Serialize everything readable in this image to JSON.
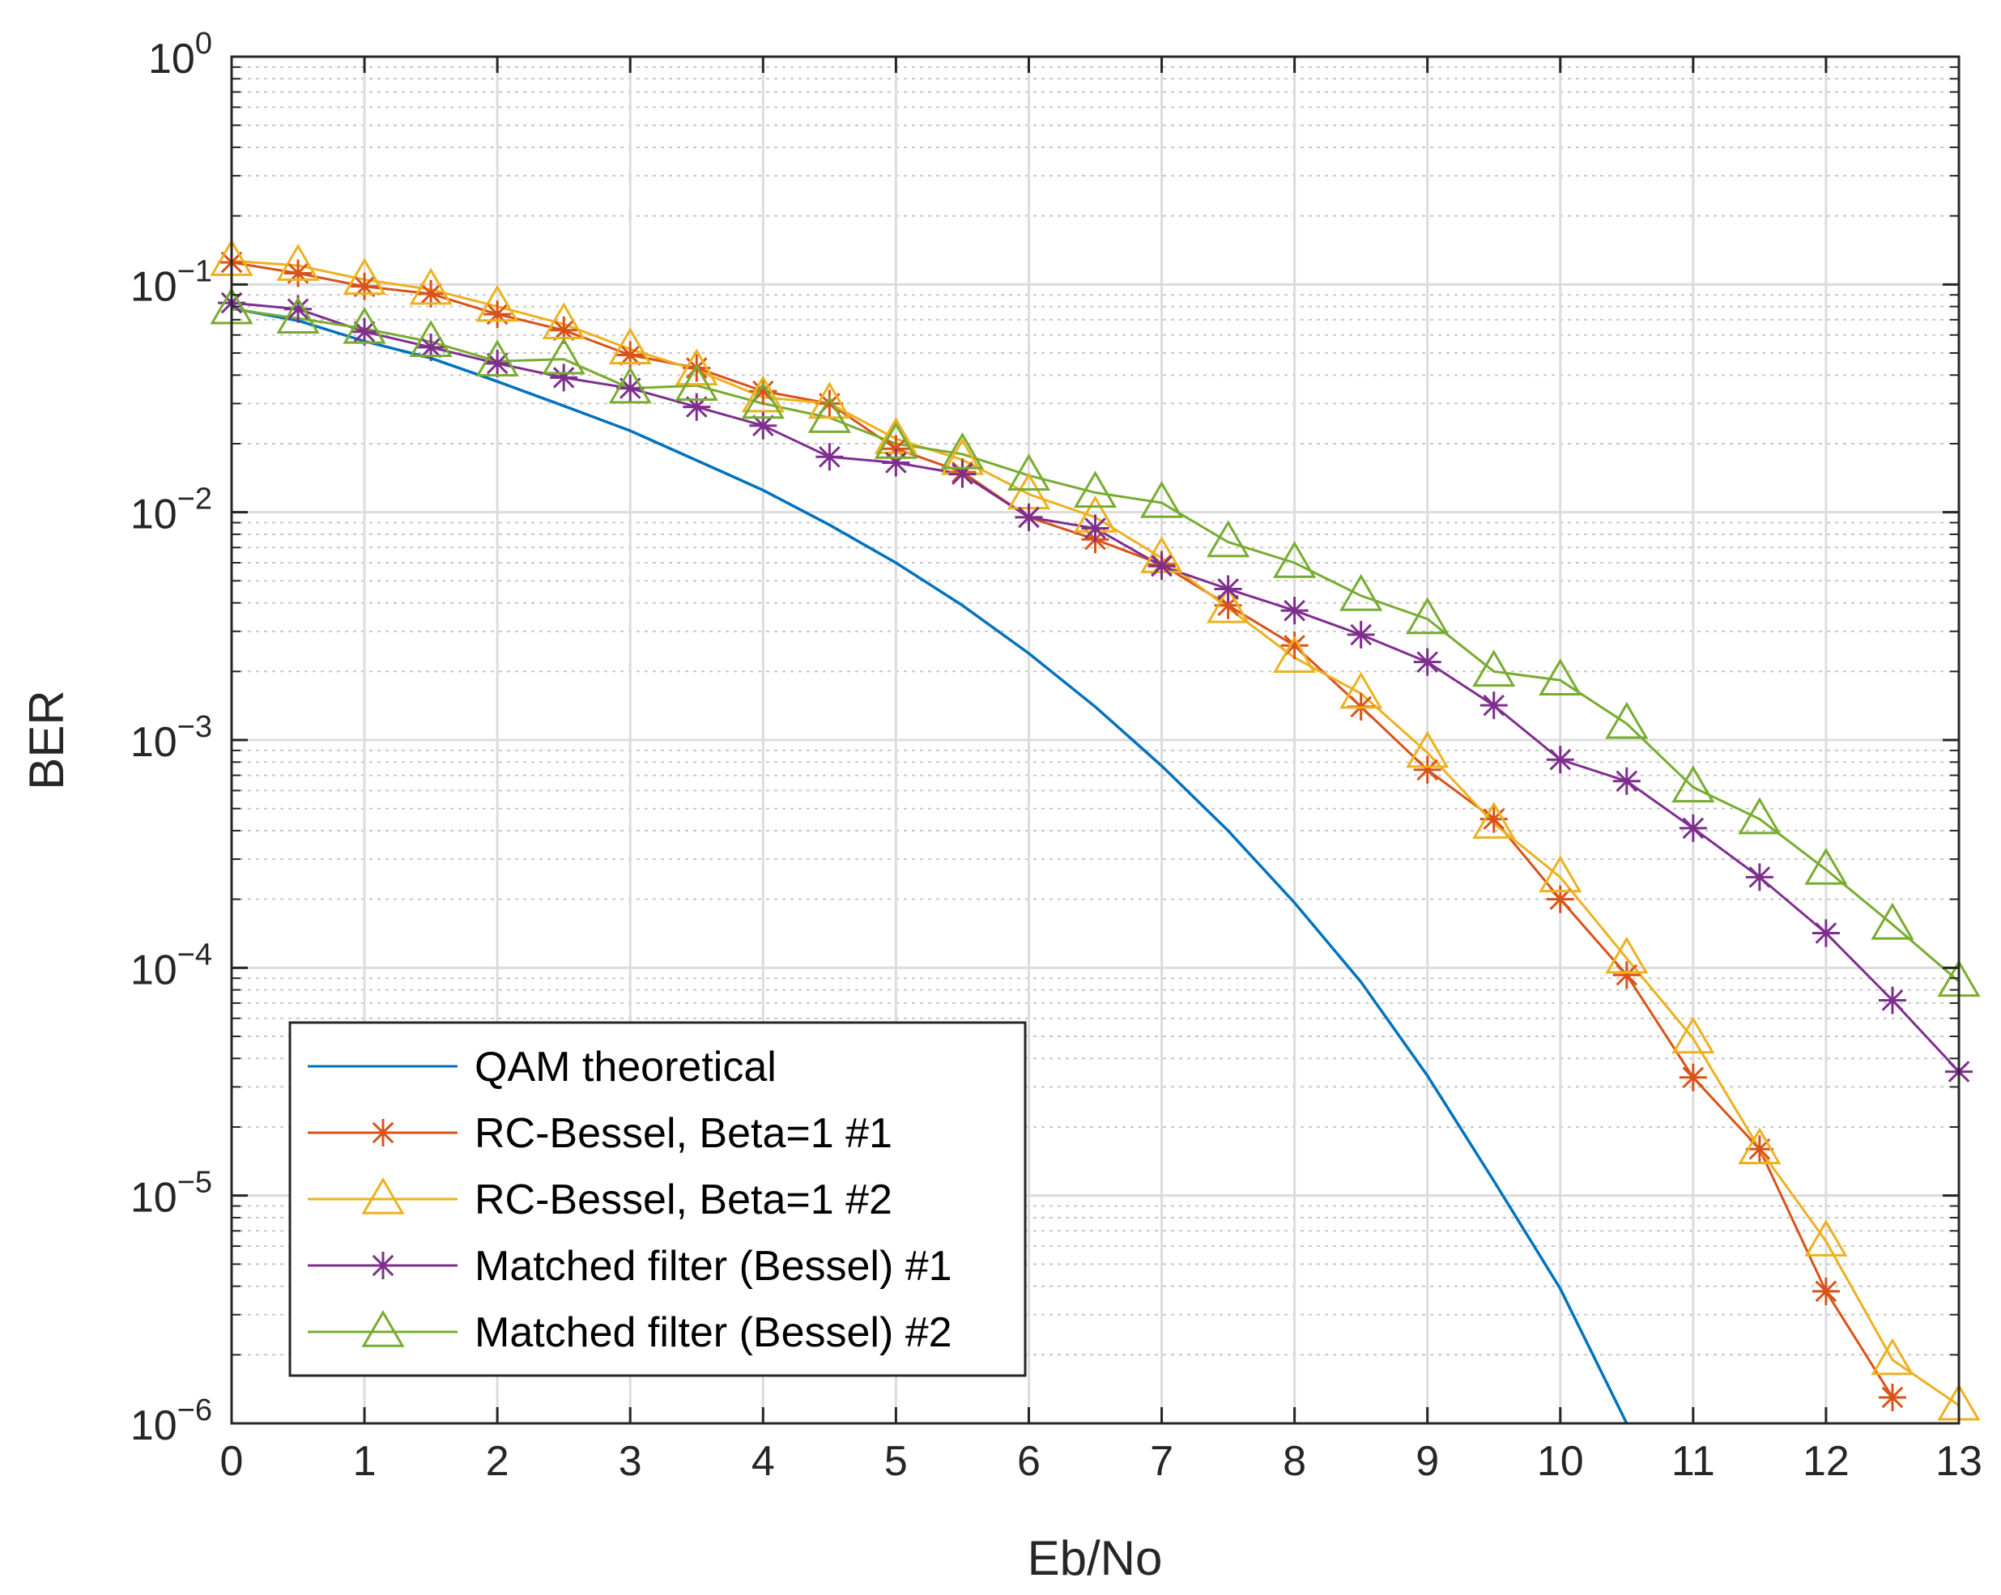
{
  "chart_data": {
    "type": "line",
    "title": "",
    "xlabel": "Eb/No",
    "ylabel": "BER",
    "yscale": "log",
    "xlim": [
      0,
      13
    ],
    "ylim": [
      1e-06,
      1
    ],
    "grid": true,
    "legend_position": "bottom-left",
    "x_ticks": [
      "0",
      "1",
      "2",
      "3",
      "4",
      "5",
      "6",
      "7",
      "8",
      "9",
      "10",
      "11",
      "12",
      "13"
    ],
    "y_ticks": [
      {
        "base": "10",
        "exp": "0"
      },
      {
        "base": "10",
        "exp": "−1"
      },
      {
        "base": "10",
        "exp": "−2"
      },
      {
        "base": "10",
        "exp": "−3"
      },
      {
        "base": "10",
        "exp": "−4"
      },
      {
        "base": "10",
        "exp": "−5"
      },
      {
        "base": "10",
        "exp": "−6"
      }
    ],
    "series": [
      {
        "name": "QAM theoretical",
        "color": "#0072BD",
        "marker": "none",
        "x": [
          0,
          0.5,
          1,
          1.5,
          2,
          2.5,
          3,
          3.5,
          4,
          4.5,
          5,
          5.5,
          6,
          6.5,
          7,
          7.5,
          8,
          8.5,
          9,
          9.5,
          10,
          10.5
        ],
        "values": [
          0.0786,
          0.0694,
          0.0563,
          0.0475,
          0.0375,
          0.0293,
          0.0228,
          0.0169,
          0.0125,
          0.0088,
          0.006,
          0.0039,
          0.0024,
          0.0014,
          0.00077,
          0.0004,
          0.000193,
          8.66e-05,
          3.36e-05,
          1.16e-05,
          3.9e-06,
          1e-06
        ]
      },
      {
        "name": "RC-Bessel, Beta=1 #1",
        "color": "#D95319",
        "marker": "asterisk",
        "x": [
          0,
          0.5,
          1,
          1.5,
          2,
          2.5,
          3,
          3.5,
          4,
          4.5,
          5,
          5.5,
          6,
          6.5,
          7,
          7.5,
          8,
          8.5,
          9,
          9.5,
          10,
          10.5,
          11,
          11.5,
          12,
          12.5
        ],
        "values": [
          0.125,
          0.112,
          0.098,
          0.091,
          0.074,
          0.063,
          0.049,
          0.043,
          0.034,
          0.03,
          0.019,
          0.015,
          0.0095,
          0.0076,
          0.0059,
          0.0039,
          0.0026,
          0.0014,
          0.00074,
          0.00045,
          0.0002,
          9.3e-05,
          3.3e-05,
          1.6e-05,
          3.8e-06,
          1.3e-06
        ]
      },
      {
        "name": "RC-Bessel, Beta=1 #2",
        "color": "#EDB120",
        "marker": "triangle",
        "x": [
          0,
          0.5,
          1,
          1.5,
          2,
          2.5,
          3,
          3.5,
          4,
          4.5,
          5,
          5.5,
          6,
          6.5,
          7,
          7.5,
          8,
          8.5,
          9,
          9.5,
          10,
          10.5,
          11,
          11.5,
          12,
          12.5,
          13
        ],
        "values": [
          0.127,
          0.121,
          0.105,
          0.095,
          0.08,
          0.067,
          0.052,
          0.042,
          0.032,
          0.03,
          0.021,
          0.017,
          0.012,
          0.0095,
          0.0063,
          0.0038,
          0.0023,
          0.0016,
          0.00088,
          0.00043,
          0.00025,
          0.00011,
          4.9e-05,
          1.6e-05,
          6.3e-06,
          1.9e-06,
          1.2e-06
        ]
      },
      {
        "name": "Matched filter (Bessel) #1",
        "color": "#7E2F8E",
        "marker": "asterisk",
        "x": [
          0,
          0.5,
          1,
          1.5,
          2,
          2.5,
          3,
          3.5,
          4,
          4.5,
          5,
          5.5,
          6,
          6.5,
          7,
          7.5,
          8,
          8.5,
          9,
          9.5,
          10,
          10.5,
          11,
          11.5,
          12,
          12.5,
          13
        ],
        "values": [
          0.083,
          0.078,
          0.062,
          0.053,
          0.045,
          0.039,
          0.035,
          0.029,
          0.024,
          0.0175,
          0.0165,
          0.0147,
          0.0095,
          0.0085,
          0.0058,
          0.0046,
          0.0037,
          0.0029,
          0.0022,
          0.00142,
          0.00082,
          0.00066,
          0.00041,
          0.00025,
          0.000142,
          7.2e-05,
          3.5e-05
        ]
      },
      {
        "name": "Matched filter (Bessel) #2",
        "color": "#77AC30",
        "marker": "triangle",
        "x": [
          0,
          0.5,
          1,
          1.5,
          2,
          2.5,
          3,
          3.5,
          4,
          4.5,
          5,
          5.5,
          6,
          6.5,
          7,
          7.5,
          8,
          8.5,
          9,
          9.5,
          10,
          10.5,
          11,
          11.5,
          12,
          12.5,
          13
        ],
        "values": [
          0.078,
          0.071,
          0.064,
          0.056,
          0.046,
          0.047,
          0.035,
          0.036,
          0.03,
          0.026,
          0.02,
          0.018,
          0.0145,
          0.0122,
          0.011,
          0.0074,
          0.006,
          0.0043,
          0.0034,
          0.002,
          0.00183,
          0.00118,
          0.00062,
          0.00045,
          0.00027,
          0.000155,
          8.7e-05
        ]
      }
    ]
  }
}
